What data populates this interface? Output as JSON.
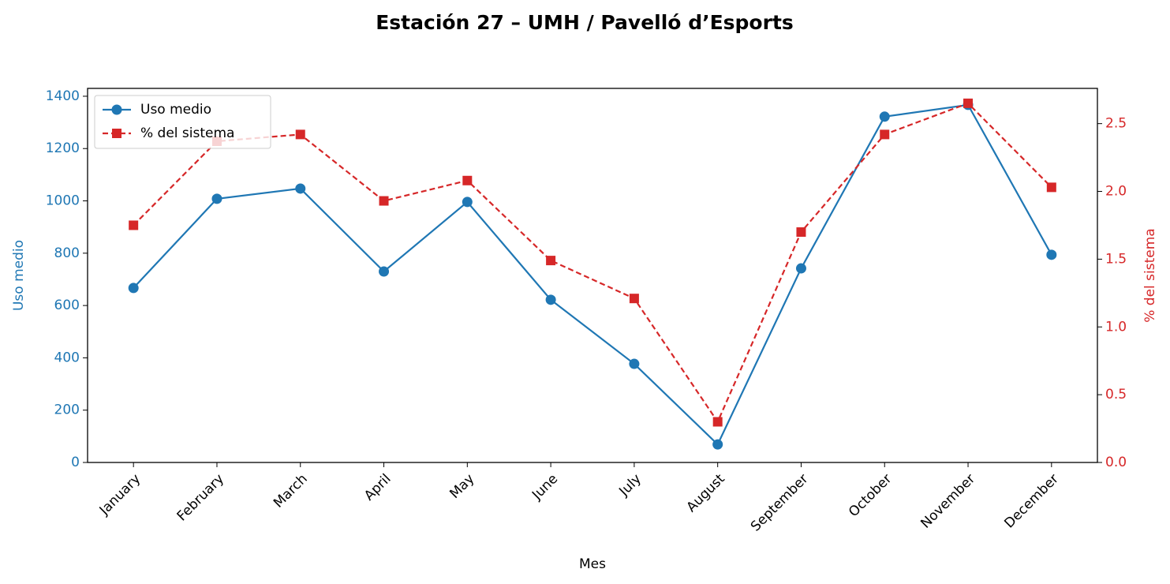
{
  "chart_data": {
    "type": "line",
    "title": "Estación 27 – UMH / Pavelló d’Esports",
    "xlabel": "Mes",
    "ylabel": "Uso medio",
    "y2label": "% del sistema",
    "categories": [
      "January",
      "February",
      "March",
      "April",
      "May",
      "June",
      "July",
      "August",
      "September",
      "October",
      "November",
      "December"
    ],
    "series": [
      {
        "name": "Uso medio",
        "color": "#1f77b4",
        "marker": "circle",
        "dash": "solid",
        "values": [
          667,
          1008,
          1047,
          730,
          996,
          622,
          377,
          69,
          742,
          1322,
          1367,
          794
        ]
      },
      {
        "name": "% del sistema",
        "color": "#d62728",
        "marker": "square",
        "dash": "dashed",
        "axis": "y2",
        "values": [
          1.75,
          2.37,
          2.42,
          1.93,
          2.08,
          1.49,
          1.21,
          0.3,
          1.7,
          2.42,
          2.65,
          2.03
        ]
      }
    ],
    "ylim": [
      0,
      1430
    ],
    "yticks": [
      0,
      200,
      400,
      600,
      800,
      1000,
      1200,
      1400
    ],
    "y2lim": [
      0,
      2.76
    ],
    "y2ticks": [
      {
        "value": 0,
        "label": "0.0"
      },
      0.5,
      {
        "value": 1,
        "label": "1.0"
      },
      1.5,
      {
        "value": 2,
        "label": "2.0"
      },
      2.5
    ],
    "legend": "upper left",
    "grid": false
  }
}
